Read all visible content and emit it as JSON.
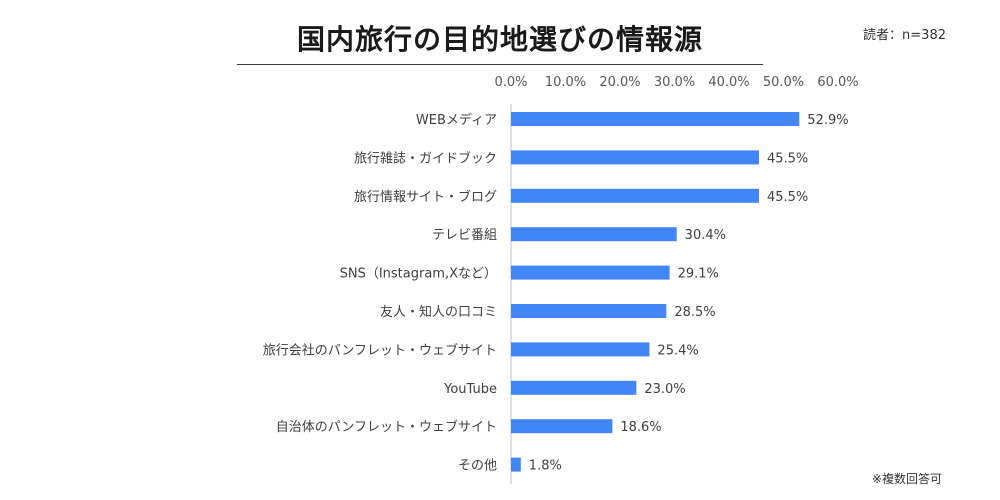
{
  "header": {
    "title": "国内旅行の目的地選びの情報源",
    "readers": "読者：n=382"
  },
  "footnote": "※複数回答可",
  "chart_data": {
    "type": "bar",
    "orientation": "horizontal",
    "categories": [
      "WEBメディア",
      "旅行雑誌・ガイドブック",
      "旅行情報サイト・ブログ",
      "テレビ番組",
      "SNS（Instagram,Xなど）",
      "友人・知人の口コミ",
      "旅行会社のパンフレット・ウェブサイト",
      "YouTube",
      "自治体のパンフレット・ウェブサイト",
      "その他"
    ],
    "values": [
      52.9,
      45.5,
      45.5,
      30.4,
      29.1,
      28.5,
      25.4,
      23.0,
      18.6,
      1.8
    ],
    "value_labels": [
      "52.9%",
      "45.5%",
      "45.5%",
      "30.4%",
      "29.1%",
      "28.5%",
      "25.4%",
      "23.0%",
      "18.6%",
      "1.8%"
    ],
    "x_ticks": [
      "0.0%",
      "10.0%",
      "20.0%",
      "30.0%",
      "40.0%",
      "50.0%",
      "60.0%"
    ],
    "xlim": [
      0,
      60
    ],
    "x_axis_position": "top",
    "grid": false,
    "bar_color": "#4285f4"
  }
}
